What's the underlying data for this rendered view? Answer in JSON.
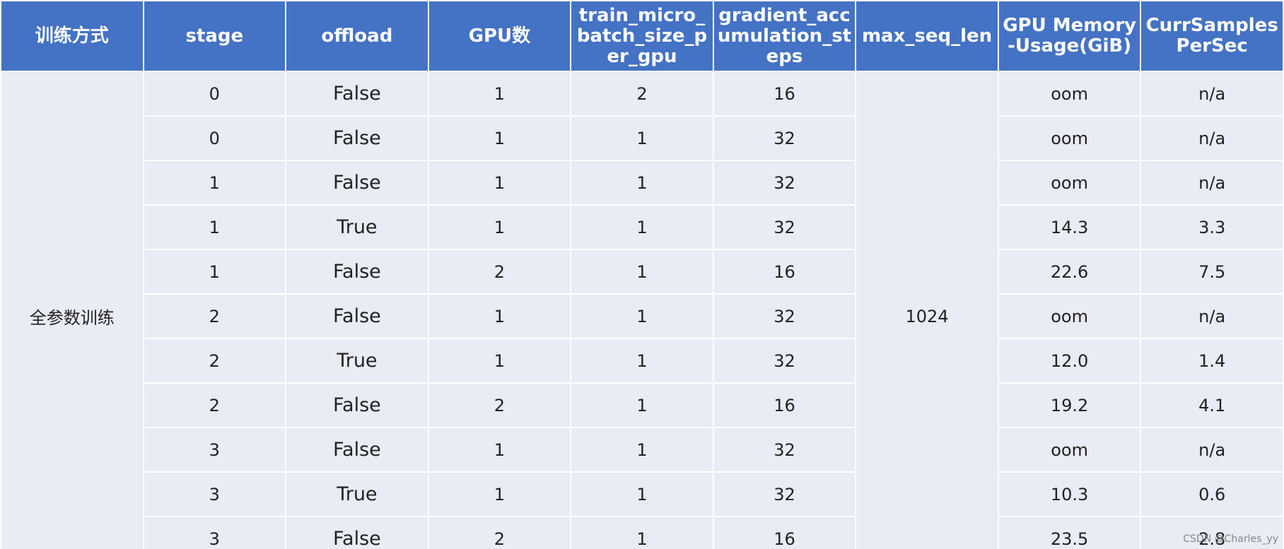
{
  "table": {
    "headers": [
      "训练方式",
      "stage",
      "offload",
      "GPU数",
      "train_micro_batch_size_per_gpu",
      "gradient_accumulation_steps",
      "max_seq_len",
      "GPU Memory-Usage(GiB)",
      "CurrSamplesPerSec"
    ],
    "method": "全参数训练",
    "max_seq_len": "1024",
    "rows": [
      [
        "0",
        "False",
        "1",
        "2",
        "16",
        "oom",
        "n/a"
      ],
      [
        "0",
        "False",
        "1",
        "1",
        "32",
        "oom",
        "n/a"
      ],
      [
        "1",
        "False",
        "1",
        "1",
        "32",
        "oom",
        "n/a"
      ],
      [
        "1",
        "True",
        "1",
        "1",
        "32",
        "14.3",
        "3.3"
      ],
      [
        "1",
        "False",
        "2",
        "1",
        "16",
        "22.6",
        "7.5"
      ],
      [
        "2",
        "False",
        "1",
        "1",
        "32",
        "oom",
        "n/a"
      ],
      [
        "2",
        "True",
        "1",
        "1",
        "32",
        "12.0",
        "1.4"
      ],
      [
        "2",
        "False",
        "2",
        "1",
        "16",
        "19.2",
        "4.1"
      ],
      [
        "3",
        "False",
        "1",
        "1",
        "32",
        "oom",
        "n/a"
      ],
      [
        "3",
        "True",
        "1",
        "1",
        "32",
        "10.3",
        "0.6"
      ],
      [
        "3",
        "False",
        "2",
        "1",
        "16",
        "23.5",
        "2.8"
      ]
    ]
  },
  "watermark": "CSDN @Charles_yy"
}
